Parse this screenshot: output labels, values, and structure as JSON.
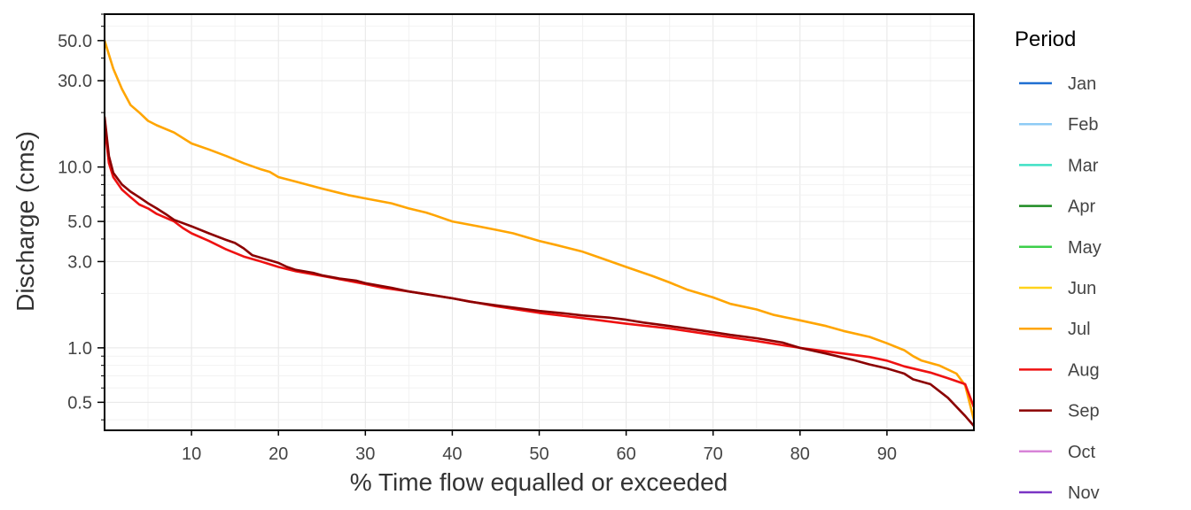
{
  "chart_data": {
    "type": "line",
    "title": "",
    "xlabel": "% Time flow equalled or exceeded",
    "ylabel": "Discharge (cms)",
    "x_scale": "linear",
    "y_scale": "log",
    "xlim": [
      0,
      100
    ],
    "ylim": [
      0.35,
      70
    ],
    "x_ticks": [
      10,
      20,
      30,
      40,
      50,
      60,
      70,
      80,
      90
    ],
    "y_ticks": [
      0.5,
      1.0,
      3.0,
      5.0,
      10.0,
      30.0,
      50.0
    ],
    "y_tick_labels": [
      "0.5",
      "1.0",
      "3.0",
      "5.0",
      "10.0",
      "30.0",
      "50.0"
    ],
    "grid": true,
    "legend_title": "Period",
    "legend_position": "right",
    "legend": [
      {
        "name": "Jan",
        "color": "#1f6fd1"
      },
      {
        "name": "Feb",
        "color": "#8ecbf5"
      },
      {
        "name": "Mar",
        "color": "#3fe0c5"
      },
      {
        "name": "Apr",
        "color": "#1e8b22"
      },
      {
        "name": "May",
        "color": "#3ccf4a"
      },
      {
        "name": "Jun",
        "color": "#ffd21a"
      },
      {
        "name": "Jul",
        "color": "#ffa500"
      },
      {
        "name": "Aug",
        "color": "#ee1111"
      },
      {
        "name": "Sep",
        "color": "#8b0000"
      },
      {
        "name": "Oct",
        "color": "#d884d8"
      },
      {
        "name": "Nov",
        "color": "#7a35c4"
      }
    ],
    "series": [
      {
        "name": "Jul",
        "color": "#ffa500",
        "x": [
          0,
          1,
          2,
          3,
          4,
          5,
          6,
          8,
          10,
          12,
          14,
          16,
          18,
          19,
          20,
          22,
          25,
          28,
          30,
          33,
          35,
          37,
          38,
          40,
          43,
          45,
          47,
          50,
          52,
          55,
          57,
          60,
          63,
          65,
          67,
          70,
          72,
          75,
          77,
          80,
          83,
          85,
          88,
          90,
          92,
          93,
          94,
          96,
          98,
          99,
          100
        ],
        "y": [
          50,
          35,
          27,
          22,
          20,
          18,
          17,
          15.5,
          13.5,
          12.5,
          11.5,
          10.5,
          9.7,
          9.4,
          8.8,
          8.3,
          7.6,
          7.0,
          6.7,
          6.3,
          5.9,
          5.6,
          5.4,
          5.0,
          4.7,
          4.5,
          4.3,
          3.9,
          3.7,
          3.4,
          3.15,
          2.8,
          2.5,
          2.3,
          2.1,
          1.9,
          1.75,
          1.63,
          1.52,
          1.42,
          1.32,
          1.24,
          1.15,
          1.06,
          0.97,
          0.9,
          0.85,
          0.8,
          0.72,
          0.62,
          0.4
        ]
      },
      {
        "name": "Aug",
        "color": "#ee1111",
        "x": [
          0,
          0.5,
          1,
          2,
          3,
          4,
          5,
          6,
          8,
          9,
          10,
          12,
          14,
          16,
          18,
          20,
          22,
          25,
          28,
          30,
          32,
          35,
          38,
          40,
          45,
          50,
          55,
          60,
          65,
          70,
          75,
          80,
          85,
          88,
          90,
          92,
          95,
          97,
          99,
          100
        ],
        "y": [
          17,
          10.5,
          8.8,
          7.5,
          6.8,
          6.2,
          5.9,
          5.5,
          5.0,
          4.6,
          4.3,
          3.9,
          3.5,
          3.2,
          3.0,
          2.8,
          2.65,
          2.5,
          2.35,
          2.25,
          2.15,
          2.05,
          1.95,
          1.88,
          1.7,
          1.56,
          1.46,
          1.36,
          1.28,
          1.18,
          1.09,
          1.0,
          0.93,
          0.89,
          0.85,
          0.79,
          0.73,
          0.68,
          0.63,
          0.47
        ]
      },
      {
        "name": "Sep",
        "color": "#8b0000",
        "x": [
          0,
          0.5,
          1,
          2,
          3,
          4,
          5,
          6,
          7,
          8,
          10,
          12,
          14,
          15,
          16,
          17,
          19,
          20,
          21,
          22,
          24,
          25,
          27,
          29,
          30,
          33,
          35,
          37,
          40,
          42,
          45,
          50,
          53,
          55,
          58,
          60,
          62,
          65,
          68,
          70,
          72,
          75,
          78,
          80,
          83,
          86,
          88,
          90,
          92,
          93,
          95,
          97,
          99,
          100
        ],
        "y": [
          19,
          11.5,
          9.3,
          8.0,
          7.3,
          6.8,
          6.3,
          5.9,
          5.5,
          5.1,
          4.7,
          4.3,
          3.95,
          3.8,
          3.55,
          3.25,
          3.05,
          2.95,
          2.8,
          2.7,
          2.6,
          2.52,
          2.42,
          2.35,
          2.28,
          2.15,
          2.05,
          1.98,
          1.88,
          1.8,
          1.72,
          1.6,
          1.55,
          1.51,
          1.47,
          1.43,
          1.38,
          1.32,
          1.26,
          1.22,
          1.18,
          1.13,
          1.07,
          1.0,
          0.93,
          0.86,
          0.81,
          0.77,
          0.72,
          0.67,
          0.63,
          0.53,
          0.42,
          0.37
        ]
      }
    ]
  }
}
